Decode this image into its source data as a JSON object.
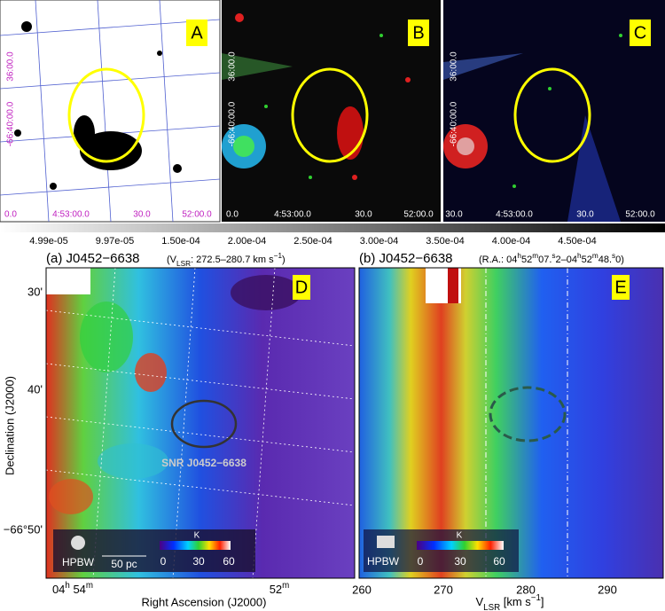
{
  "panels_top": [
    {
      "label": "A",
      "y_labels": [
        "36:00.0",
        "-66:40:00.0"
      ],
      "x_labels": [
        "0.0",
        "4:53:00.0",
        "30.0",
        "52:00.0"
      ]
    },
    {
      "label": "B",
      "y_labels": [
        "36:00.0",
        "-66:40:00.0"
      ],
      "x_labels": [
        "0.0",
        "4:53:00.0",
        "30.0",
        "52:00.0"
      ]
    },
    {
      "label": "C",
      "y_labels": [
        "36:00.0",
        "-66:40:00.0"
      ],
      "x_labels": [
        "30.0",
        "4:53:00.0",
        "30.0",
        "52:00.0"
      ]
    }
  ],
  "colorbar": {
    "ticks": [
      "4.99e-05",
      "9.97e-05",
      "1.50e-04",
      "2.00e-04",
      "2.50e-04",
      "3.00e-04",
      "3.50e-04",
      "4.00e-04",
      "4.50e-04"
    ]
  },
  "panel_d": {
    "label": "D",
    "title": "(a) J0452−6638",
    "subtitle": [
      "(V",
      "LSR",
      ": 272.5–280.7 km s",
      "−1",
      ")"
    ],
    "y_label": "Declination (J2000)",
    "y_ticks": [
      "30'",
      "40'",
      "−66°50'"
    ],
    "x_ticks": [
      [
        "04",
        "h",
        " 54",
        "m"
      ],
      [
        "52",
        "m"
      ]
    ],
    "x_label": "Right Ascension (J2000)",
    "annotation": "SNR J0452−6638",
    "scale_bar": "50 pc",
    "beam": "HPBW",
    "colorbar": {
      "unit": "K",
      "ticks": [
        "0",
        "30",
        "60"
      ]
    }
  },
  "panel_e": {
    "label": "E",
    "title": "(b) J0452−6638",
    "subtitle": [
      "(R.A.: 04",
      "h",
      "52",
      "m",
      "07.",
      "s",
      "2–04",
      "h",
      "52",
      "m",
      "48.",
      "s",
      "0)"
    ],
    "x_ticks": [
      "260",
      "270",
      "280",
      "290"
    ],
    "x_label": [
      "V",
      "LSR",
      " [km s",
      "−1",
      "]"
    ],
    "beam": "HPBW",
    "colorbar": {
      "unit": "K",
      "ticks": [
        "0",
        "30",
        "60"
      ]
    }
  }
}
